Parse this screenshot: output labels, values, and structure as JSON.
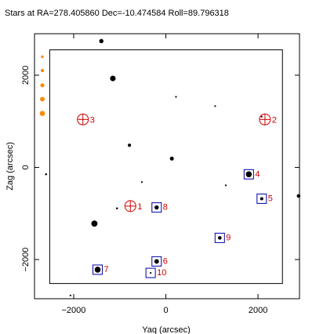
{
  "chart_data": {
    "type": "scatter",
    "title": "Stars at RA=278.405860 Dec=-10.474584 Roll=89.796318",
    "xlabel": "Yaq (arcsec)",
    "ylabel": "Zag (arcsec)",
    "xlim": [
      -2850,
      2900
    ],
    "ylim": [
      -2850,
      2900
    ],
    "xticks": [
      -2000,
      0,
      2000
    ],
    "yticks": [
      -2000,
      0,
      2000
    ],
    "xtick_labels": [
      "−2000",
      "0",
      "2000"
    ],
    "ytick_labels": [
      "−2000",
      "0",
      "2000"
    ],
    "ccd_box": {
      "x": [
        -2520,
        2530
      ],
      "y": [
        -2520,
        2550
      ]
    },
    "colors": {
      "guide": "#cc0000",
      "acq": "#0000aa",
      "star": "#000000",
      "scale": "#ff8800"
    },
    "stars": [
      {
        "y": -1400,
        "z": 2740,
        "mag": 9.6
      },
      {
        "y": -1150,
        "z": 1930,
        "mag": 8.8
      },
      {
        "y": 220,
        "z": 1530,
        "mag": 11.2
      },
      {
        "y": 1070,
        "z": 1330,
        "mag": 11.2
      },
      {
        "y": -2600,
        "z": -150,
        "mag": 11.0
      },
      {
        "y": -790,
        "z": 480,
        "mag": 10.2
      },
      {
        "y": 130,
        "z": 190,
        "mag": 9.8
      },
      {
        "y": -520,
        "z": -320,
        "mag": 11.2
      },
      {
        "y": -1550,
        "z": -1220,
        "mag": 8.4
      },
      {
        "y": -1060,
        "z": -890,
        "mag": 11.0
      },
      {
        "y": 1300,
        "z": -390,
        "mag": 11.2
      },
      {
        "y": 2880,
        "z": -620,
        "mag": 10.0
      },
      {
        "y": -2070,
        "z": -2780,
        "mag": 11.2
      },
      {
        "y": 1800,
        "z": -150,
        "mag": 8.6
      },
      {
        "y": 2080,
        "z": 1100,
        "mag": 11.2
      },
      {
        "y": -200,
        "z": -870,
        "mag": 9.6
      },
      {
        "y": -200,
        "z": -2040,
        "mag": 9.4
      },
      {
        "y": -1480,
        "z": -2220,
        "mag": 8.6
      },
      {
        "y": 1170,
        "z": -1530,
        "mag": 10.0
      },
      {
        "y": 2080,
        "z": -680,
        "mag": 10.2
      },
      {
        "y": -330,
        "z": -2290,
        "mag": 11.2
      }
    ],
    "guide_stars": [
      {
        "id": "1",
        "y": -770,
        "z": -840
      },
      {
        "id": "2",
        "y": 2150,
        "z": 1040
      },
      {
        "id": "3",
        "y": -1800,
        "z": 1040
      }
    ],
    "acq_boxes": [
      {
        "id": "4",
        "y": 1800,
        "z": -150
      },
      {
        "id": "5",
        "y": 2080,
        "z": -680
      },
      {
        "id": "6",
        "y": -200,
        "z": -2040
      },
      {
        "id": "7",
        "y": -1480,
        "z": -2220
      },
      {
        "id": "8",
        "y": -200,
        "z": -870
      },
      {
        "id": "9",
        "y": 1170,
        "z": -1530
      },
      {
        "id": "10",
        "y": -330,
        "z": -2290
      }
    ],
    "mag_scale": [
      {
        "mag": 10.0,
        "z": 2400
      },
      {
        "mag": 9.5,
        "z": 2100
      },
      {
        "mag": 9.0,
        "z": 1780
      },
      {
        "mag": 8.5,
        "z": 1480
      },
      {
        "mag": 8.0,
        "z": 1170
      }
    ]
  }
}
